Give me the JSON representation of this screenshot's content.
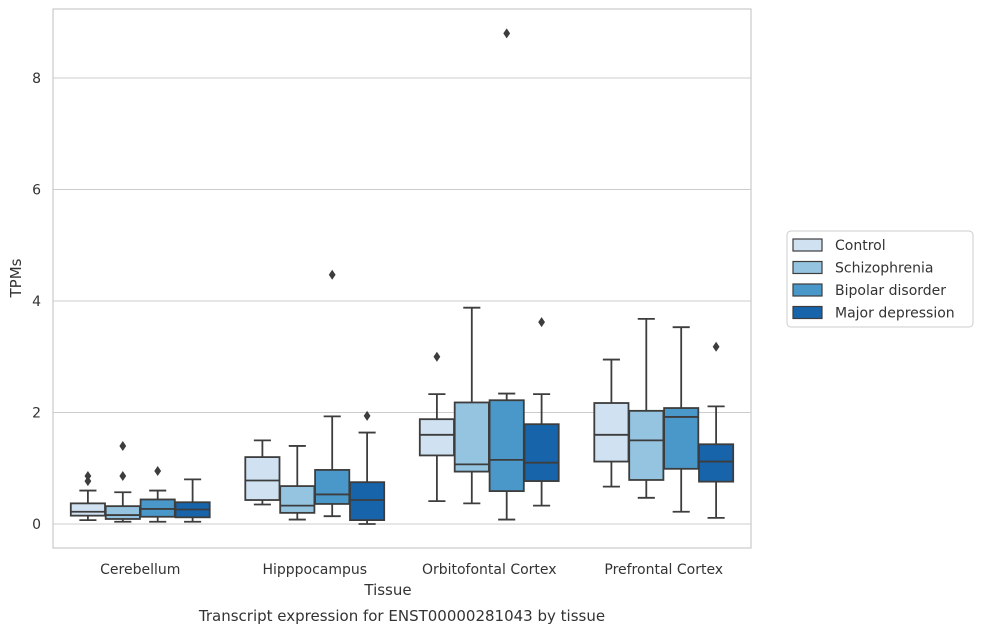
{
  "caption": "Transcript expression for ENST00000281043 by tissue",
  "chart_data": {
    "type": "box",
    "xlabel": "Tissue",
    "ylabel": "TPMs",
    "ylim": [
      -0.43,
      9.25
    ],
    "yticks": [
      0,
      2,
      4,
      6,
      8
    ],
    "grid": "horizontal",
    "legend_position": "right",
    "categories": [
      "Cerebellum",
      "Hipppocampus",
      "Orbitofontal Cortex",
      "Prefrontal Cortex"
    ],
    "series": [
      {
        "name": "Control",
        "color": "#d0e1f2",
        "boxes": [
          {
            "whisker_low": 0.07,
            "q1": 0.15,
            "median": 0.22,
            "q3": 0.37,
            "whisker_high": 0.6,
            "outliers": [
              0.77,
              0.86
            ]
          },
          {
            "whisker_low": 0.35,
            "q1": 0.43,
            "median": 0.78,
            "q3": 1.2,
            "whisker_high": 1.5,
            "outliers": []
          },
          {
            "whisker_low": 0.41,
            "q1": 1.23,
            "median": 1.6,
            "q3": 1.88,
            "whisker_high": 2.33,
            "outliers": [
              3.0
            ]
          },
          {
            "whisker_low": 0.67,
            "q1": 1.12,
            "median": 1.6,
            "q3": 2.17,
            "whisker_high": 2.95,
            "outliers": []
          }
        ]
      },
      {
        "name": "Schizophrenia",
        "color": "#94c4df",
        "boxes": [
          {
            "whisker_low": 0.04,
            "q1": 0.09,
            "median": 0.16,
            "q3": 0.32,
            "whisker_high": 0.57,
            "outliers": [
              0.86,
              1.4
            ]
          },
          {
            "whisker_low": 0.08,
            "q1": 0.2,
            "median": 0.33,
            "q3": 0.68,
            "whisker_high": 1.4,
            "outliers": []
          },
          {
            "whisker_low": 0.37,
            "q1": 0.94,
            "median": 1.07,
            "q3": 2.18,
            "whisker_high": 3.88,
            "outliers": []
          },
          {
            "whisker_low": 0.47,
            "q1": 0.79,
            "median": 1.5,
            "q3": 2.03,
            "whisker_high": 3.68,
            "outliers": []
          }
        ]
      },
      {
        "name": "Bipolar disorder",
        "color": "#4a98c9",
        "boxes": [
          {
            "whisker_low": 0.04,
            "q1": 0.13,
            "median": 0.27,
            "q3": 0.44,
            "whisker_high": 0.6,
            "outliers": [
              0.95
            ]
          },
          {
            "whisker_low": 0.14,
            "q1": 0.36,
            "median": 0.53,
            "q3": 0.97,
            "whisker_high": 1.93,
            "outliers": [
              4.47
            ]
          },
          {
            "whisker_low": 0.08,
            "q1": 0.59,
            "median": 1.15,
            "q3": 2.22,
            "whisker_high": 2.34,
            "outliers": [
              8.8
            ]
          },
          {
            "whisker_low": 0.22,
            "q1": 0.99,
            "median": 1.92,
            "q3": 2.08,
            "whisker_high": 3.53,
            "outliers": []
          }
        ]
      },
      {
        "name": "Major depression",
        "color": "#1764ab",
        "boxes": [
          {
            "whisker_low": 0.04,
            "q1": 0.12,
            "median": 0.26,
            "q3": 0.39,
            "whisker_high": 0.8,
            "outliers": []
          },
          {
            "whisker_low": 0.0,
            "q1": 0.07,
            "median": 0.43,
            "q3": 0.75,
            "whisker_high": 1.64,
            "outliers": [
              1.94
            ]
          },
          {
            "whisker_low": 0.33,
            "q1": 0.77,
            "median": 1.1,
            "q3": 1.79,
            "whisker_high": 2.33,
            "outliers": [
              3.62
            ]
          },
          {
            "whisker_low": 0.11,
            "q1": 0.76,
            "median": 1.12,
            "q3": 1.43,
            "whisker_high": 2.11,
            "outliers": [
              3.18
            ]
          }
        ]
      }
    ]
  }
}
